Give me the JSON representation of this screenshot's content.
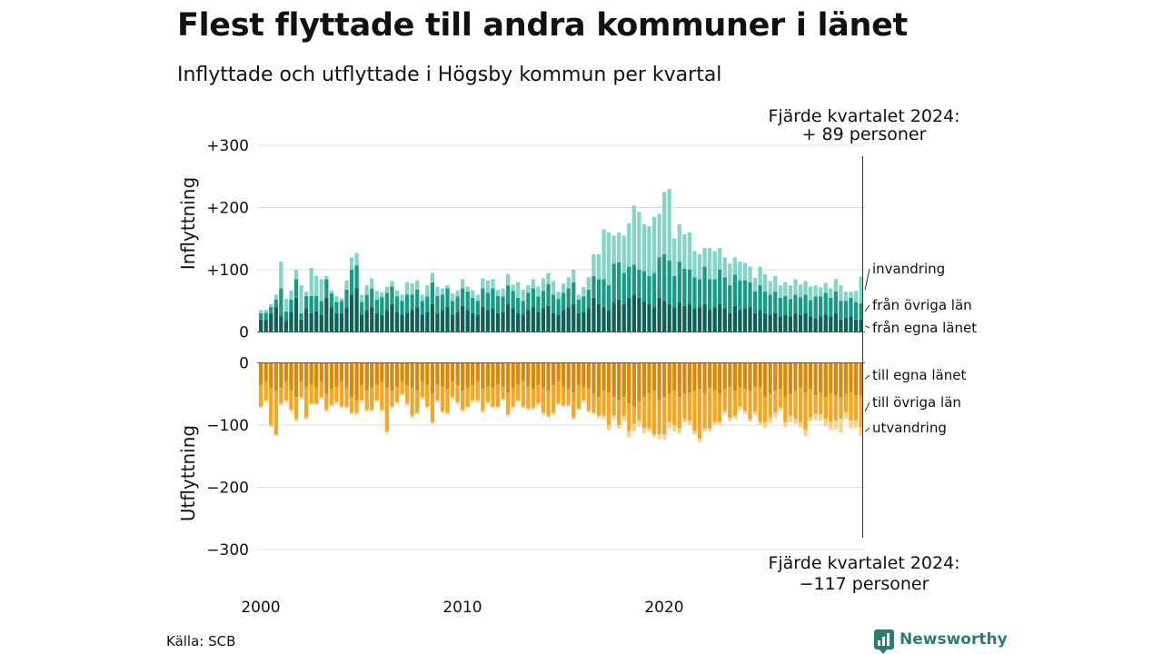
{
  "title": "Flest flyttade till andra kommuner i länet",
  "subtitle": "Inflyttade och utflyttade i Högsby kommun per kvartal",
  "source": "Källa: SCB",
  "brand": "Newsworthy",
  "colors": {
    "egna_in": "#0f6157",
    "ovriga_in": "#1a9987",
    "invandring": "#86d4c8",
    "egna_ut": "#d68a0e",
    "ovriga_ut": "#f5a623",
    "utvandring": "#fbd38d",
    "grid": "#dddddd"
  },
  "chart_data": {
    "type": "bar",
    "stacked": true,
    "diverging": true,
    "x_start": "2000 Q1",
    "x_ticks": [
      "2000",
      "2010",
      "2020"
    ],
    "y_ticks": [
      "+300",
      "+200",
      "+100",
      "0",
      "0",
      "−100",
      "−200",
      "−300"
    ],
    "ylim": [
      -300,
      300
    ],
    "ylabel_top": "Inflyttning",
    "ylabel_bottom": "Utflyttning",
    "annotation_top": [
      "Fjärde kvartalet 2024:",
      "+ 89 personer"
    ],
    "annotation_bottom": [
      "Fjärde kvartalet 2024:",
      "−117 personer"
    ],
    "legend_top": [
      "invandring",
      "från övriga län",
      "från egna länet"
    ],
    "legend_bottom": [
      "till egna länet",
      "till övriga län",
      "utvandring"
    ],
    "series": [
      {
        "name": "från egna länet",
        "group": "in",
        "values": [
          20,
          19,
          30,
          40,
          25,
          18,
          32,
          55,
          20,
          38,
          30,
          33,
          28,
          55,
          40,
          30,
          30,
          38,
          60,
          70,
          28,
          35,
          40,
          30,
          28,
          35,
          45,
          32,
          28,
          30,
          35,
          40,
          28,
          32,
          45,
          30,
          35,
          40,
          28,
          32,
          42,
          35,
          30,
          28,
          40,
          35,
          38,
          30,
          32,
          45,
          38,
          30,
          28,
          35,
          40,
          32,
          38,
          42,
          30,
          28,
          35,
          40,
          45,
          30,
          32,
          38,
          55,
          45,
          40,
          35,
          48,
          52,
          45,
          55,
          60,
          55,
          50,
          45,
          40,
          55,
          50,
          45,
          40,
          48,
          42,
          45,
          38,
          40,
          45,
          35,
          40,
          45,
          38,
          30,
          42,
          35,
          38,
          40,
          30,
          35,
          30,
          28,
          30,
          25,
          28,
          25,
          30,
          28,
          30,
          25,
          22,
          25,
          28,
          25,
          30,
          20,
          22,
          25,
          20,
          20
        ]
      },
      {
        "name": "från övriga län",
        "group": "in",
        "values": [
          10,
          12,
          10,
          12,
          45,
          15,
          20,
          30,
          10,
          20,
          28,
          25,
          22,
          30,
          22,
          18,
          20,
          30,
          40,
          37,
          20,
          25,
          30,
          22,
          28,
          28,
          28,
          25,
          22,
          30,
          25,
          28,
          22,
          25,
          35,
          28,
          25,
          30,
          22,
          25,
          28,
          30,
          25,
          22,
          30,
          28,
          32,
          28,
          25,
          30,
          28,
          25,
          22,
          28,
          30,
          25,
          28,
          35,
          30,
          25,
          28,
          30,
          35,
          22,
          25,
          30,
          35,
          40,
          45,
          40,
          62,
          60,
          50,
          50,
          48,
          45,
          48,
          45,
          55,
          65,
          75,
          70,
          50,
          65,
          60,
          55,
          50,
          45,
          60,
          50,
          45,
          55,
          50,
          45,
          50,
          48,
          45,
          40,
          35,
          40,
          35,
          32,
          35,
          30,
          30,
          28,
          30,
          28,
          30,
          26,
          35,
          32,
          35,
          30,
          35,
          30,
          28,
          30,
          28,
          26
        ]
      },
      {
        "name": "invandring",
        "group": "in",
        "values": [
          5,
          5,
          5,
          8,
          43,
          20,
          15,
          15,
          45,
          7,
          45,
          32,
          35,
          5,
          5,
          10,
          4,
          15,
          20,
          20,
          12,
          15,
          16,
          14,
          8,
          10,
          9,
          10,
          10,
          20,
          18,
          15,
          10,
          18,
          15,
          15,
          10,
          5,
          12,
          10,
          15,
          8,
          12,
          10,
          16,
          20,
          15,
          10,
          13,
          18,
          10,
          25,
          18,
          12,
          15,
          16,
          20,
          18,
          22,
          12,
          15,
          18,
          20,
          8,
          15,
          20,
          35,
          40,
          80,
          85,
          45,
          48,
          60,
          70,
          95,
          93,
          75,
          80,
          90,
          70,
          100,
          115,
          60,
          60,
          55,
          60,
          42,
          40,
          30,
          50,
          45,
          35,
          32,
          35,
          28,
          30,
          28,
          25,
          22,
          30,
          28,
          22,
          25,
          20,
          22,
          22,
          25,
          20,
          22,
          22,
          18,
          15,
          16,
          15,
          20,
          25,
          15,
          10,
          18,
          43
        ]
      },
      {
        "name": "till egna länet",
        "group": "out",
        "values": [
          35,
          30,
          40,
          45,
          40,
          30,
          45,
          55,
          30,
          38,
          35,
          40,
          30,
          50,
          42,
          38,
          30,
          40,
          55,
          60,
          35,
          45,
          40,
          35,
          30,
          40,
          45,
          38,
          30,
          35,
          40,
          45,
          30,
          35,
          50,
          35,
          38,
          42,
          30,
          35,
          45,
          40,
          35,
          30,
          42,
          38,
          40,
          35,
          38,
          48,
          40,
          35,
          30,
          38,
          42,
          35,
          40,
          45,
          35,
          30,
          38,
          42,
          48,
          35,
          38,
          42,
          50,
          55,
          45,
          48,
          55,
          60,
          55,
          65,
          70,
          62,
          55,
          50,
          45,
          60,
          55,
          50,
          45,
          55,
          50,
          48,
          45,
          42,
          50,
          40,
          45,
          50,
          42,
          38,
          45,
          40,
          42,
          45,
          38,
          40,
          55,
          50,
          45,
          42,
          55,
          50,
          45,
          40,
          48,
          42,
          52,
          48,
          55,
          50,
          52,
          55,
          50,
          48,
          52,
          52
        ]
      },
      {
        "name": "till övriga län",
        "group": "out",
        "values": [
          35,
          30,
          60,
          70,
          25,
          30,
          30,
          35,
          25,
          50,
          30,
          25,
          25,
          25,
          25,
          25,
          40,
          30,
          25,
          20,
          25,
          30,
          35,
          25,
          45,
          70,
          25,
          25,
          20,
          30,
          45,
          35,
          25,
          35,
          45,
          25,
          40,
          38,
          25,
          28,
          30,
          30,
          25,
          30,
          35,
          25,
          30,
          35,
          20,
          35,
          30,
          25,
          40,
          35,
          30,
          30,
          40,
          40,
          45,
          35,
          30,
          25,
          40,
          38,
          22,
          35,
          30,
          30,
          40,
          52,
          30,
          40,
          30,
          45,
          28,
          30,
          50,
          55,
          70,
          55,
          60,
          45,
          55,
          50,
          40,
          45,
          65,
          80,
          55,
          65,
          50,
          45,
          35,
          50,
          40,
          30,
          35,
          45,
          40,
          55,
          40,
          38,
          35,
          30,
          40,
          35,
          45,
          55,
          60,
          45,
          30,
          35,
          35,
          45,
          40,
          35,
          30,
          45,
          40,
          52
        ]
      },
      {
        "name": "utvandring",
        "group": "out",
        "values": [
          3,
          3,
          3,
          3,
          3,
          3,
          3,
          3,
          3,
          3,
          3,
          3,
          3,
          3,
          3,
          3,
          3,
          3,
          3,
          3,
          3,
          3,
          3,
          3,
          3,
          3,
          3,
          3,
          3,
          3,
          3,
          3,
          3,
          3,
          3,
          3,
          3,
          3,
          3,
          3,
          3,
          3,
          3,
          3,
          3,
          3,
          3,
          3,
          3,
          3,
          3,
          3,
          3,
          3,
          3,
          3,
          3,
          3,
          3,
          3,
          3,
          3,
          3,
          3,
          3,
          3,
          3,
          3,
          5,
          8,
          5,
          5,
          8,
          10,
          12,
          10,
          8,
          5,
          5,
          8,
          8,
          10,
          10,
          8,
          6,
          6,
          5,
          5,
          5,
          5,
          5,
          5,
          5,
          5,
          5,
          5,
          5,
          5,
          5,
          5,
          10,
          8,
          8,
          5,
          8,
          10,
          8,
          10,
          10,
          6,
          10,
          10,
          12,
          12,
          15,
          22,
          10,
          12,
          12,
          13
        ]
      }
    ]
  }
}
